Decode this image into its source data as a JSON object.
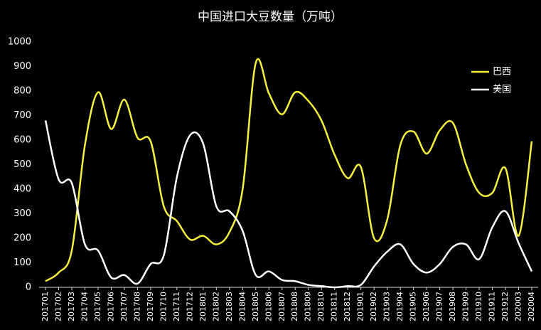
{
  "chart_data": {
    "type": "line",
    "title": "中国进口大豆数量（万吨）",
    "categories": [
      "201701",
      "201702",
      "201703",
      "201704",
      "201705",
      "201706",
      "201707",
      "201708",
      "201709",
      "201710",
      "201711",
      "201712",
      "201801",
      "201802",
      "201803",
      "201804",
      "201805",
      "201806",
      "201807",
      "201808",
      "201809",
      "201810",
      "201811",
      "201812",
      "201901",
      "201902",
      "201903",
      "201904",
      "201905",
      "201906",
      "201907",
      "201908",
      "201909",
      "201910",
      "201911",
      "201912",
      "202003",
      "202004"
    ],
    "series": [
      {
        "name": "巴西",
        "color": "#f4f03c",
        "values": [
          25,
          60,
          150,
          580,
          795,
          645,
          765,
          610,
          595,
          330,
          270,
          195,
          210,
          175,
          225,
          400,
          915,
          790,
          705,
          795,
          760,
          680,
          540,
          445,
          490,
          200,
          275,
          580,
          635,
          545,
          640,
          670,
          500,
          385,
          385,
          485,
          210,
          595
        ]
      },
      {
        "name": "美国",
        "color": "#ffffff",
        "values": [
          680,
          440,
          425,
          175,
          150,
          40,
          50,
          15,
          95,
          130,
          450,
          620,
          585,
          330,
          310,
          230,
          50,
          65,
          30,
          25,
          10,
          5,
          0,
          5,
          10,
          85,
          145,
          175,
          95,
          60,
          95,
          165,
          175,
          115,
          245,
          310,
          180,
          65
        ]
      }
    ],
    "ylim": [
      0,
      1000
    ],
    "yticks": [
      0,
      100,
      200,
      300,
      400,
      500,
      600,
      700,
      800,
      900,
      1000
    ],
    "smooth": true,
    "legend": "top-right"
  }
}
